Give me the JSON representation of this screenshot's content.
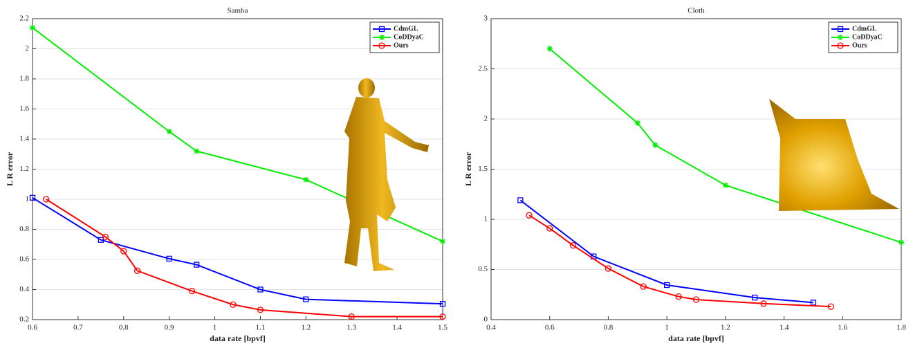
{
  "chart_data": [
    {
      "type": "line",
      "title": "Samba",
      "x_label": "data rate [bpvf]",
      "y_label": "L R error",
      "xlim": [
        0.6,
        1.5
      ],
      "xticks": [
        0.6,
        0.7,
        0.8,
        0.9,
        1,
        1.1,
        1.2,
        1.3,
        1.4,
        1.5
      ],
      "ylim": [
        0.2,
        2.2
      ],
      "yticks": [
        0.2,
        0.4,
        0.6,
        0.8,
        1,
        1.2,
        1.4,
        1.6,
        1.8,
        2,
        2.2
      ],
      "grid": true,
      "legend": "upper right",
      "series": [
        {
          "name": "CdmGL",
          "color": "#0000ff",
          "marker": "square",
          "x": [
            0.6,
            0.75,
            0.9,
            0.96,
            1.1,
            1.2,
            1.5
          ],
          "values": [
            1.01,
            0.73,
            0.605,
            0.565,
            0.4,
            0.335,
            0.305
          ]
        },
        {
          "name": "CoDDyaC",
          "color": "#00ee00",
          "marker": "asterisk",
          "x": [
            0.6,
            0.9,
            0.96,
            1.2,
            1.5
          ],
          "values": [
            2.14,
            1.45,
            1.32,
            1.13,
            0.72
          ]
        },
        {
          "name": "Ours",
          "color": "#ff0000",
          "marker": "circle",
          "x": [
            0.63,
            0.76,
            0.8,
            0.83,
            0.95,
            1.04,
            1.1,
            1.3,
            1.5
          ],
          "values": [
            1.0,
            0.75,
            0.655,
            0.525,
            0.39,
            0.3,
            0.265,
            0.22,
            0.22
          ]
        }
      ]
    },
    {
      "type": "line",
      "title": "Cloth",
      "x_label": "data rate [bpvf]",
      "y_label": "L R error",
      "xlim": [
        0.4,
        1.8
      ],
      "xticks": [
        0.4,
        0.6,
        0.8,
        1,
        1.2,
        1.4,
        1.6,
        1.8
      ],
      "ylim": [
        0,
        3
      ],
      "yticks": [
        0,
        0.5,
        1,
        1.5,
        2,
        2.5,
        3
      ],
      "grid": true,
      "legend": "upper right",
      "series": [
        {
          "name": "CdmGL",
          "color": "#0000ff",
          "marker": "square",
          "x": [
            0.5,
            0.75,
            1.0,
            1.3,
            1.5
          ],
          "values": [
            1.19,
            0.63,
            0.345,
            0.22,
            0.17
          ]
        },
        {
          "name": "CoDDyaC",
          "color": "#00ee00",
          "marker": "asterisk",
          "x": [
            0.6,
            0.9,
            0.96,
            1.2,
            1.8
          ],
          "values": [
            2.7,
            1.96,
            1.74,
            1.34,
            0.77
          ]
        },
        {
          "name": "Ours",
          "color": "#ff0000",
          "marker": "circle",
          "x": [
            0.53,
            0.6,
            0.68,
            0.8,
            0.92,
            1.04,
            1.1,
            1.33,
            1.56
          ],
          "values": [
            1.04,
            0.91,
            0.74,
            0.51,
            0.33,
            0.23,
            0.2,
            0.16,
            0.13
          ]
        }
      ]
    }
  ]
}
